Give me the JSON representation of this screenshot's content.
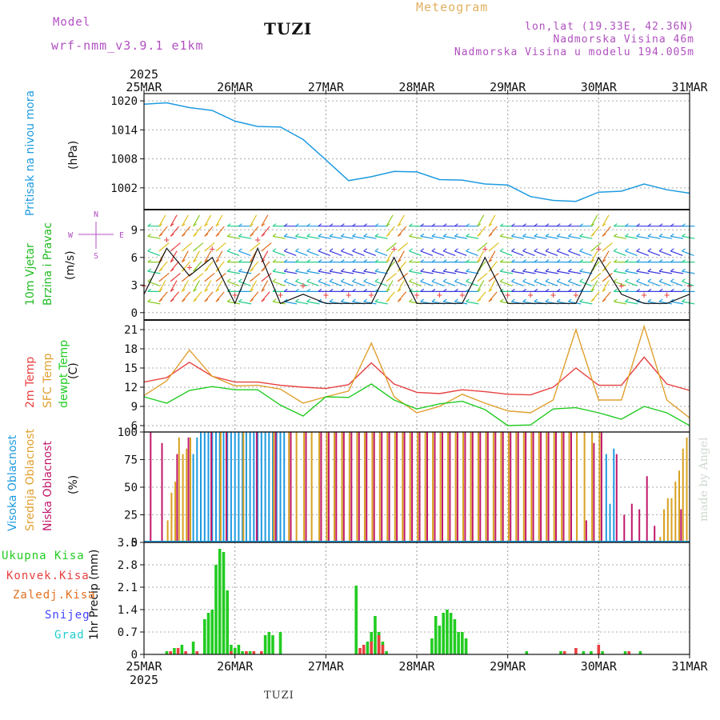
{
  "header": {
    "model_label": "Model",
    "model_version": "wrf-nmm_v3.9.1 e1km",
    "station": "TUZI",
    "title": "Meteogram",
    "coords": "lon,lat (19.33E, 42.36N)",
    "elevation": "Nadmorska Visina 46m",
    "model_elevation": "Nadmorska Visina u modelu 194.005m",
    "footer_station": "TUZI",
    "watermark": "made by Angel"
  },
  "colors": {
    "pressure": "#1e9be0",
    "wind_label": "#22bb22",
    "temp2m": "#e84040",
    "sfc_temp": "#e0a030",
    "dewpt": "#22cc22",
    "cloud_high": "#1e9be0",
    "cloud_mid": "#d8a020",
    "cloud_low": "#c0186a",
    "precip_total": "#22cc22",
    "precip_conv": "#e84040",
    "precip_frozen": "#e07020",
    "snow": "#4444ff",
    "hail": "#22cccc",
    "model_text": "#b050c0",
    "title_text": "#e0b060"
  },
  "chart_data": [
    {
      "type": "line",
      "panel": "pressure",
      "ylabel_main": "Pritisak na nivou mora",
      "unit": "(hPa)",
      "x_labels_top": [
        "25MAR",
        "26MAR",
        "27MAR",
        "28MAR",
        "29MAR",
        "30MAR",
        "31MAR"
      ],
      "year_top": "2025",
      "ylim": [
        997.5,
        1021.5
      ],
      "yticks": [
        "1020",
        "1014",
        "1008",
        "1002"
      ],
      "x_hours": [
        0,
        6,
        12,
        18,
        24,
        30,
        36,
        42,
        48,
        54,
        60,
        66,
        72,
        78,
        84,
        90,
        96,
        102,
        108,
        114,
        120,
        126,
        132,
        138,
        144
      ],
      "values": [
        1019.3,
        1019.6,
        1018.6,
        1018.0,
        1015.8,
        1014.7,
        1014.6,
        1012.0,
        1007.8,
        1003.5,
        1004.3,
        1005.4,
        1005.3,
        1003.7,
        1003.6,
        1002.8,
        1002.6,
        1000.2,
        999.4,
        999.2,
        1001.1,
        1001.3,
        1002.8,
        1001.6,
        1000.9
      ]
    },
    {
      "type": "line",
      "panel": "wind",
      "ylabel_main": "10m Vjetar",
      "ylabel_sub": "Brzina i Pravac",
      "unit": "(m/s)",
      "compass": [
        "S",
        "W",
        "E",
        "N"
      ],
      "ylim": [
        -0.8,
        11.2
      ],
      "yticks": [
        "9",
        "6",
        "3",
        "0"
      ],
      "x_hours": [
        0,
        6,
        12,
        18,
        24,
        30,
        36,
        42,
        48,
        54,
        60,
        66,
        72,
        78,
        84,
        90,
        96,
        102,
        108,
        114,
        120,
        126,
        132,
        138,
        144
      ],
      "values": [
        2,
        7,
        4,
        6,
        1,
        7,
        1,
        2,
        1,
        1,
        1,
        6,
        1,
        1,
        1,
        6,
        1,
        1,
        1,
        1,
        6,
        2,
        1,
        1,
        2
      ]
    },
    {
      "type": "line",
      "panel": "temperature",
      "ylabel_main": "2m Temp",
      "ylabel_sub": "SFC Temp",
      "ylabel_sub2": "dewpt Temp",
      "unit": "(C)",
      "ylim": [
        5,
        22.5
      ],
      "yticks": [
        "21",
        "18",
        "15",
        "12",
        "9",
        "6"
      ],
      "x_hours": [
        0,
        6,
        12,
        18,
        24,
        30,
        36,
        42,
        48,
        54,
        60,
        66,
        72,
        78,
        84,
        90,
        96,
        102,
        108,
        114,
        120,
        126,
        132,
        138,
        144
      ],
      "series": [
        {
          "name": "2m Temp",
          "values": [
            12.8,
            13.5,
            15.9,
            13.7,
            12.8,
            12.8,
            12.3,
            12.0,
            11.8,
            12.4,
            15.8,
            12.5,
            11.2,
            11.0,
            11.6,
            11.3,
            10.9,
            10.8,
            12.0,
            15.0,
            12.3,
            12.3,
            16.7,
            12.5,
            11.5
          ]
        },
        {
          "name": "SFC Temp",
          "values": [
            10.7,
            13.0,
            17.8,
            13.7,
            12.2,
            12.3,
            11.7,
            9.5,
            10.5,
            11.4,
            18.9,
            10.5,
            8.0,
            9.0,
            10.9,
            9.5,
            8.3,
            8.0,
            10.0,
            21.0,
            10.0,
            10.0,
            21.5,
            10.0,
            7.2
          ]
        },
        {
          "name": "dewpt Temp",
          "values": [
            10.5,
            9.5,
            11.5,
            12.1,
            11.6,
            11.6,
            9.2,
            7.5,
            10.5,
            10.4,
            12.5,
            10.0,
            8.6,
            9.4,
            9.8,
            8.5,
            6.0,
            6.1,
            8.6,
            8.8,
            8.0,
            7.0,
            9.0,
            8.0,
            6.0
          ]
        }
      ]
    },
    {
      "type": "bar",
      "panel": "cloud",
      "ylabel_main": "Visoka Oblacnost",
      "ylabel_sub": "Srednja Oblacnost",
      "ylabel_sub2": "Niska Oblacnost",
      "unit": "(%)",
      "ylim": [
        0,
        100
      ],
      "yticks": [
        "100",
        "75",
        "50",
        "25",
        "0"
      ],
      "series": [
        {
          "name": "Visoka Oblacnost",
          "hours": [
            13,
            14,
            15,
            16,
            17,
            18,
            19,
            20,
            21,
            22,
            23,
            24,
            25,
            26,
            27,
            28,
            29,
            30,
            31,
            32,
            33,
            34,
            35,
            36,
            37,
            122,
            123,
            124
          ],
          "values": [
            80,
            95,
            100,
            100,
            100,
            100,
            100,
            100,
            100,
            100,
            100,
            100,
            100,
            100,
            100,
            100,
            100,
            100,
            100,
            100,
            100,
            100,
            100,
            100,
            100,
            80,
            35,
            85
          ]
        },
        {
          "name": "Srednja Oblacnost",
          "hours": [
            6,
            7,
            8,
            9,
            10,
            11,
            12,
            20,
            26,
            34,
            38,
            40,
            42,
            44,
            46,
            48,
            50,
            52,
            54,
            56,
            58,
            60,
            62,
            64,
            66,
            68,
            70,
            72,
            74,
            76,
            78,
            80,
            82,
            84,
            86,
            88,
            90,
            92,
            94,
            96,
            98,
            100,
            102,
            104,
            106,
            108,
            110,
            112,
            114,
            116,
            118,
            120,
            136,
            137,
            138,
            139,
            140,
            141,
            142,
            143
          ],
          "values": [
            20,
            45,
            55,
            95,
            80,
            85,
            95,
            100,
            100,
            100,
            100,
            100,
            100,
            100,
            100,
            100,
            100,
            100,
            100,
            100,
            100,
            100,
            100,
            100,
            100,
            100,
            100,
            100,
            100,
            100,
            100,
            100,
            100,
            100,
            100,
            100,
            100,
            100,
            100,
            100,
            100,
            100,
            100,
            100,
            100,
            100,
            100,
            100,
            100,
            100,
            100,
            100,
            5,
            30,
            40,
            40,
            55,
            65,
            85,
            95
          ]
        },
        {
          "name": "Niska Oblacnost",
          "hours": [
            2,
            5,
            9,
            12,
            18,
            22,
            30,
            35,
            39,
            43,
            47,
            49,
            51,
            53,
            55,
            57,
            59,
            61,
            63,
            65,
            67,
            69,
            71,
            73,
            75,
            77,
            79,
            81,
            83,
            85,
            87,
            89,
            91,
            93,
            95,
            97,
            99,
            101,
            103,
            105,
            107,
            109,
            111,
            113,
            117,
            119,
            121,
            125,
            127,
            129,
            131,
            133,
            135,
            142
          ],
          "values": [
            100,
            90,
            80,
            95,
            100,
            100,
            100,
            100,
            100,
            100,
            100,
            100,
            100,
            100,
            100,
            100,
            100,
            100,
            100,
            100,
            100,
            100,
            100,
            100,
            100,
            100,
            100,
            100,
            100,
            100,
            100,
            100,
            100,
            100,
            100,
            100,
            100,
            100,
            100,
            100,
            100,
            100,
            100,
            100,
            20,
            90,
            100,
            80,
            25,
            35,
            30,
            60,
            15,
            30
          ]
        }
      ]
    },
    {
      "type": "bar",
      "panel": "precip",
      "ylabel_main": "1hr Precip (mm)",
      "legend": [
        "Ukupna Kisa",
        "Konvek.Kisa",
        "Zaledj.Kisa",
        "Snijeg",
        "Grad"
      ],
      "x_labels_bottom": [
        "25MAR",
        "26MAR",
        "27MAR",
        "28MAR",
        "29MAR",
        "30MAR",
        "31MAR"
      ],
      "year_bottom": "2025",
      "ylim": [
        0,
        3.5
      ],
      "yticks": [
        "3.5",
        "2.8",
        "2.1",
        "1.4",
        "0.7",
        "0"
      ],
      "series": [
        {
          "name": "Ukupna Kisa",
          "hours": [
            6,
            8,
            10,
            13,
            16,
            17,
            18,
            19,
            20,
            21,
            22,
            23,
            24,
            25,
            26,
            28,
            32,
            33,
            34,
            36,
            56,
            59,
            60,
            61,
            62,
            63,
            64,
            76,
            77,
            78,
            79,
            80,
            81,
            82,
            83,
            84,
            85,
            101,
            110,
            116,
            118,
            121,
            127,
            131
          ],
          "values": [
            0.1,
            0.2,
            0.3,
            0.4,
            1.1,
            1.3,
            1.4,
            2.8,
            3.3,
            3.2,
            2.0,
            0.3,
            0.2,
            0.3,
            0.1,
            0.1,
            0.6,
            0.7,
            0.6,
            0.7,
            2.15,
            0.4,
            0.7,
            1.2,
            0.7,
            0.4,
            0.1,
            0.5,
            1.2,
            0.9,
            1.3,
            1.4,
            1.3,
            1.1,
            0.7,
            0.7,
            0.5,
            0.1,
            0.1,
            0.1,
            0.1,
            0.1,
            0.1,
            0.1
          ]
        },
        {
          "name": "Konvek.Kisa",
          "hours": [
            7,
            9,
            11,
            14,
            23,
            27,
            29,
            31,
            57,
            58,
            60,
            62,
            63,
            111,
            114,
            120,
            128
          ],
          "values": [
            0.1,
            0.2,
            0.1,
            0.1,
            0.1,
            0.1,
            0.1,
            0.1,
            0.2,
            0.3,
            0.4,
            0.6,
            0.3,
            0.1,
            0.2,
            0.3,
            0.1
          ]
        },
        {
          "name": "Zaledj.Kisa",
          "hours": [],
          "values": []
        },
        {
          "name": "Snijeg",
          "hours": [],
          "values": []
        },
        {
          "name": "Grad",
          "hours": [],
          "values": []
        }
      ]
    }
  ]
}
